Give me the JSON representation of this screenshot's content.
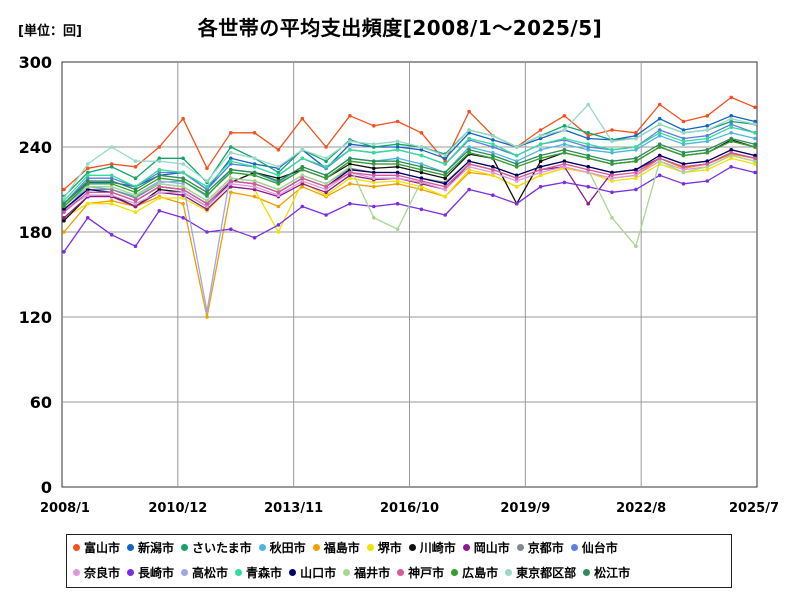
{
  "chart_data": {
    "type": "line",
    "title": "各世帯の平均支出頻度[2008/1～2025/5]",
    "unit_label": "[単位：回]",
    "ylim": [
      0,
      300
    ],
    "yticks": [
      "0",
      "60",
      "120",
      "180",
      "240",
      "300"
    ],
    "x_start": "2008/1",
    "x_end": "2025/7",
    "xticks": [
      "2008/1",
      "2010/12",
      "2013/11",
      "2016/10",
      "2019/9",
      "2022/8",
      "2025/7"
    ],
    "grid": true,
    "legend_position": "bottom",
    "series": [
      {
        "name": "富山市",
        "color": "#f4511e",
        "values": [
          210,
          225,
          228,
          226,
          240,
          260,
          225,
          250,
          250,
          238,
          260,
          240,
          262,
          255,
          258,
          250,
          230,
          265,
          248,
          240,
          252,
          262,
          248,
          252,
          250,
          270,
          258,
          262,
          275,
          268
        ]
      },
      {
        "name": "新潟市",
        "color": "#1565c0",
        "values": [
          200,
          215,
          215,
          212,
          220,
          222,
          210,
          232,
          228,
          225,
          238,
          225,
          242,
          240,
          240,
          238,
          232,
          250,
          245,
          240,
          246,
          252,
          246,
          245,
          248,
          260,
          252,
          255,
          262,
          258
        ]
      },
      {
        "name": "さいたま市",
        "color": "#13a36b",
        "values": [
          205,
          222,
          226,
          218,
          232,
          232,
          215,
          240,
          232,
          222,
          238,
          230,
          245,
          240,
          242,
          240,
          235,
          252,
          248,
          240,
          248,
          255,
          250,
          245,
          246,
          256,
          250,
          252,
          258,
          256
        ]
      },
      {
        "name": "秋田市",
        "color": "#4fb5e0",
        "values": [
          195,
          212,
          210,
          205,
          215,
          216,
          205,
          224,
          222,
          215,
          226,
          220,
          232,
          230,
          232,
          228,
          222,
          240,
          236,
          230,
          238,
          242,
          238,
          236,
          238,
          248,
          242,
          244,
          250,
          246
        ]
      },
      {
        "name": "福島市",
        "color": "#f0a000",
        "values": [
          180,
          200,
          202,
          198,
          205,
          200,
          120,
          208,
          205,
          198,
          212,
          205,
          214,
          212,
          214,
          210,
          205,
          222,
          220,
          212,
          220,
          225,
          222,
          218,
          220,
          232,
          225,
          228,
          235,
          232
        ]
      },
      {
        "name": "堺市",
        "color": "#f2e000",
        "values": [
          190,
          200,
          200,
          194,
          204,
          204,
          195,
          212,
          210,
          180,
          215,
          206,
          218,
          215,
          216,
          212,
          205,
          224,
          220,
          212,
          220,
          225,
          222,
          216,
          218,
          228,
          222,
          224,
          232,
          228
        ]
      },
      {
        "name": "川崎市",
        "color": "#111111",
        "values": [
          188,
          205,
          206,
          198,
          210,
          208,
          198,
          215,
          222,
          218,
          224,
          218,
          228,
          225,
          226,
          222,
          218,
          235,
          232,
          200,
          230,
          236,
          232,
          228,
          230,
          240,
          234,
          236,
          245,
          240
        ]
      },
      {
        "name": "岡山市",
        "color": "#8b1a8b",
        "values": [
          190,
          205,
          205,
          198,
          208,
          206,
          196,
          212,
          210,
          205,
          214,
          208,
          220,
          217,
          218,
          214,
          210,
          228,
          224,
          218,
          224,
          226,
          200,
          222,
          224,
          232,
          226,
          228,
          236,
          232
        ]
      },
      {
        "name": "京都市",
        "color": "#808890",
        "values": [
          195,
          210,
          210,
          204,
          214,
          212,
          202,
          218,
          216,
          210,
          220,
          214,
          225,
          222,
          222,
          218,
          215,
          230,
          226,
          220,
          226,
          230,
          226,
          222,
          224,
          234,
          228,
          230,
          238,
          234
        ]
      },
      {
        "name": "仙台市",
        "color": "#5b7fe0",
        "values": [
          200,
          218,
          218,
          212,
          222,
          222,
          210,
          228,
          226,
          220,
          232,
          225,
          238,
          236,
          238,
          234,
          228,
          245,
          240,
          234,
          242,
          245,
          240,
          238,
          240,
          252,
          246,
          248,
          256,
          250
        ]
      },
      {
        "name": "奈良市",
        "color": "#dd99dd",
        "values": [
          196,
          206,
          206,
          200,
          208,
          208,
          198,
          214,
          212,
          206,
          216,
          210,
          222,
          218,
          218,
          215,
          210,
          226,
          222,
          216,
          222,
          226,
          222,
          218,
          220,
          230,
          224,
          226,
          234,
          230
        ]
      },
      {
        "name": "長崎市",
        "color": "#7b2ee0",
        "values": [
          166,
          190,
          178,
          170,
          195,
          190,
          180,
          182,
          176,
          185,
          198,
          192,
          200,
          198,
          200,
          196,
          192,
          210,
          206,
          200,
          212,
          215,
          212,
          208,
          210,
          220,
          214,
          216,
          226,
          222
        ]
      },
      {
        "name": "高松市",
        "color": "#9fa8e8",
        "values": [
          198,
          212,
          212,
          206,
          216,
          214,
          124,
          222,
          220,
          214,
          224,
          218,
          230,
          228,
          228,
          224,
          220,
          236,
          232,
          226,
          232,
          236,
          232,
          228,
          230,
          240,
          234,
          236,
          244,
          240
        ]
      },
      {
        "name": "青森市",
        "color": "#33dd99",
        "values": [
          202,
          220,
          220,
          212,
          224,
          222,
          212,
          230,
          226,
          220,
          232,
          226,
          238,
          236,
          238,
          234,
          228,
          246,
          242,
          234,
          242,
          246,
          242,
          238,
          240,
          250,
          244,
          246,
          254,
          250
        ]
      },
      {
        "name": "山口市",
        "color": "#000066",
        "values": [
          196,
          210,
          208,
          202,
          212,
          210,
          200,
          216,
          214,
          208,
          218,
          212,
          224,
          222,
          222,
          218,
          214,
          230,
          226,
          220,
          226,
          230,
          226,
          222,
          224,
          234,
          228,
          230,
          238,
          234
        ]
      },
      {
        "name": "福井市",
        "color": "#a8d890",
        "values": [
          200,
          212,
          212,
          206,
          214,
          212,
          202,
          218,
          216,
          210,
          220,
          214,
          226,
          190,
          182,
          216,
          212,
          228,
          224,
          218,
          224,
          228,
          224,
          190,
          170,
          230,
          222,
          226,
          234,
          230
        ]
      },
      {
        "name": "神戸市",
        "color": "#d85a9c",
        "values": [
          194,
          208,
          208,
          202,
          212,
          210,
          200,
          216,
          214,
          208,
          218,
          212,
          222,
          220,
          220,
          216,
          212,
          228,
          224,
          218,
          224,
          228,
          224,
          220,
          222,
          232,
          226,
          228,
          236,
          232
        ]
      },
      {
        "name": "広島市",
        "color": "#33a02c",
        "values": [
          198,
          214,
          214,
          208,
          218,
          216,
          206,
          222,
          220,
          214,
          224,
          218,
          230,
          228,
          228,
          224,
          220,
          236,
          232,
          226,
          232,
          236,
          232,
          228,
          230,
          240,
          234,
          236,
          244,
          240
        ]
      },
      {
        "name": "東京都区部",
        "color": "#99d8c9",
        "values": [
          204,
          228,
          240,
          230,
          230,
          228,
          216,
          236,
          232,
          226,
          238,
          232,
          244,
          242,
          244,
          240,
          234,
          252,
          248,
          240,
          248,
          252,
          270,
          244,
          246,
          256,
          250,
          252,
          260,
          256
        ]
      },
      {
        "name": "松江市",
        "color": "#2e8b57",
        "values": [
          200,
          216,
          216,
          210,
          220,
          218,
          208,
          224,
          222,
          216,
          226,
          220,
          232,
          230,
          230,
          226,
          222,
          238,
          234,
          228,
          234,
          238,
          234,
          230,
          232,
          242,
          236,
          238,
          246,
          242
        ]
      }
    ]
  }
}
